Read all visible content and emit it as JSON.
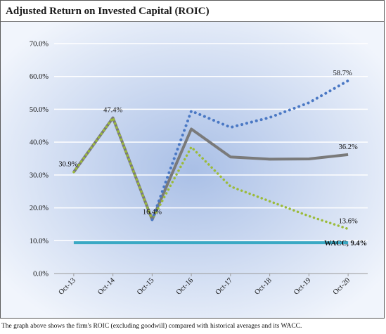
{
  "title": "Adjusted Return on Invested Capital (ROIC)",
  "caption": "The graph above shows the firm's ROIC (excluding goodwill) compared with historical averages and its WACC.",
  "colors": {
    "roic": "#7a7a7a",
    "upper": "#4a78c4",
    "lower": "#9bbb3a",
    "wacc": "#3aa9c4",
    "grid": "#ffffff",
    "bg_center": "#a9bfe6",
    "bg_edge": "#f1f5fc"
  },
  "chart_data": {
    "type": "line",
    "categories": [
      "Oct-13",
      "Oct-14",
      "Oct-15",
      "Oct-16",
      "Oct-17",
      "Oct-18",
      "Oct-19",
      "Oct-20"
    ],
    "ylim": [
      0,
      70
    ],
    "yticks": [
      0,
      10,
      20,
      30,
      40,
      50,
      60,
      70
    ],
    "ytick_labels": [
      "0.0%",
      "10.0%",
      "20.0%",
      "30.0%",
      "40.0%",
      "50.0%",
      "60.0%",
      "70.0%"
    ],
    "grid": true,
    "series": [
      {
        "key": "roic",
        "style": "solid",
        "values": [
          30.9,
          47.4,
          16.4,
          44.0,
          35.5,
          34.8,
          34.9,
          36.2
        ]
      },
      {
        "key": "upper",
        "style": "dotted",
        "values": [
          null,
          null,
          16.4,
          49.5,
          44.5,
          47.5,
          52.0,
          58.7
        ]
      },
      {
        "key": "lower",
        "style": "dotted",
        "values": [
          30.9,
          47.4,
          16.4,
          38.5,
          26.5,
          22.0,
          17.5,
          13.6
        ]
      },
      {
        "key": "wacc",
        "style": "solid",
        "values": [
          9.4,
          9.4,
          9.4,
          9.4,
          9.4,
          9.4,
          9.4,
          9.4
        ]
      }
    ],
    "data_labels": [
      {
        "text": "30.9%",
        "x": "Oct-13",
        "y": 30.9,
        "pos": "above-left"
      },
      {
        "text": "47.4%",
        "x": "Oct-14",
        "y": 47.4,
        "pos": "above"
      },
      {
        "text": "16.4%",
        "x": "Oct-15",
        "y": 16.4,
        "pos": "above"
      },
      {
        "text": "58.7%",
        "x": "Oct-20",
        "y": 58.7,
        "pos": "above-left"
      },
      {
        "text": "36.2%",
        "x": "Oct-20",
        "y": 36.2,
        "pos": "above"
      },
      {
        "text": "13.6%",
        "x": "Oct-20",
        "y": 13.6,
        "pos": "above"
      },
      {
        "text": "WACC, 9.4%",
        "x": "Oct-20",
        "y": 9.4,
        "pos": "right",
        "bold": true
      }
    ]
  }
}
